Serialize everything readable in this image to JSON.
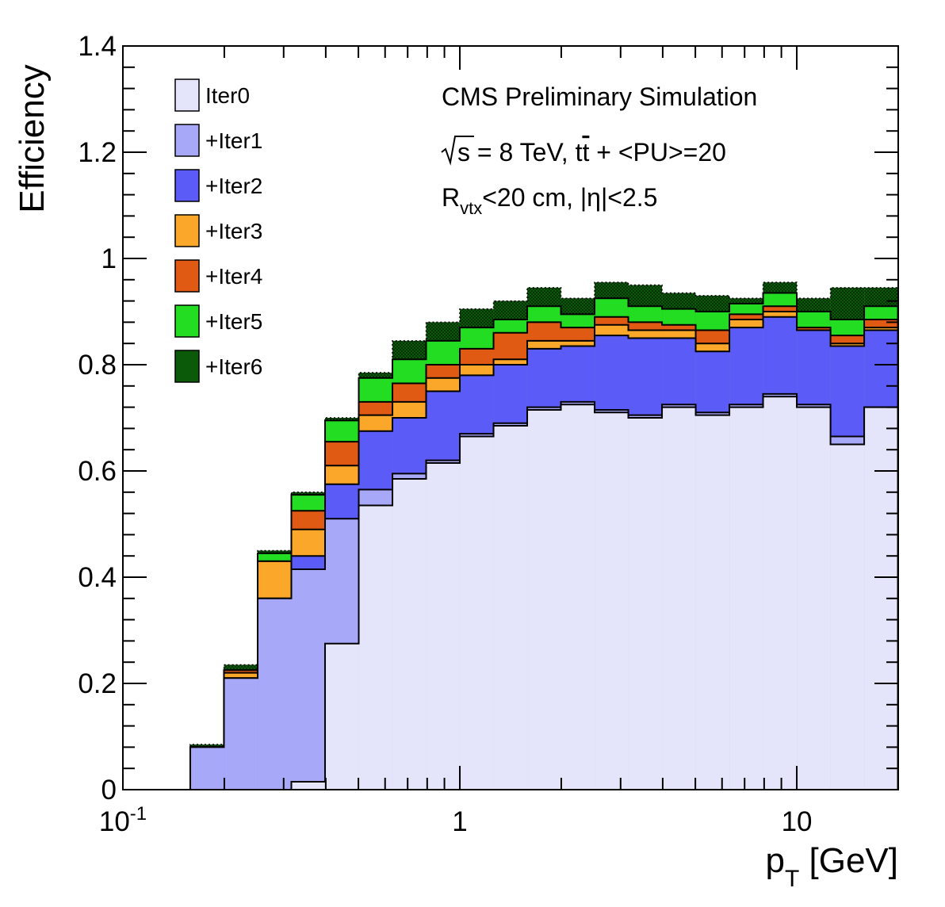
{
  "chart_data": {
    "type": "area",
    "style": "stacked-step-histogram",
    "xscale": "log",
    "xlim": [
      0.1,
      20
    ],
    "ylim": [
      0,
      1.4
    ],
    "xlabel_main": "p",
    "xlabel_sub": "T",
    "xlabel_unit": "[GeV]",
    "ylabel": "Efficiency",
    "grid": false,
    "legend_position": "top-left",
    "xtick_labels": [
      {
        "value": 0.1,
        "base": "10",
        "exp": "-1"
      },
      {
        "value": 1,
        "base": "1",
        "exp": ""
      },
      {
        "value": 10,
        "base": "10",
        "exp": ""
      }
    ],
    "ytick_labels": [
      {
        "value": 0,
        "label": "0"
      },
      {
        "value": 0.2,
        "label": "0.2"
      },
      {
        "value": 0.4,
        "label": "0.4"
      },
      {
        "value": 0.6,
        "label": "0.6"
      },
      {
        "value": 0.8,
        "label": "0.8"
      },
      {
        "value": 1.0,
        "label": "1"
      },
      {
        "value": 1.2,
        "label": "1.2"
      },
      {
        "value": 1.4,
        "label": "1.4"
      }
    ],
    "bin_edges": [
      0.1585,
      0.1995,
      0.2512,
      0.3162,
      0.3981,
      0.5012,
      0.631,
      0.7943,
      1.0,
      1.259,
      1.585,
      1.995,
      2.512,
      3.162,
      3.981,
      5.012,
      6.31,
      7.943,
      10.0,
      12.59,
      15.85,
      19.95
    ],
    "series": [
      {
        "name": "Iter0",
        "color": "#e4e4fb",
        "values": [
          0,
          0,
          0,
          0.015,
          0.275,
          0.535,
          0.585,
          0.615,
          0.665,
          0.685,
          0.715,
          0.725,
          0.71,
          0.7,
          0.72,
          0.705,
          0.72,
          0.74,
          0.72,
          0.65,
          0.72
        ]
      },
      {
        "name": "+Iter1",
        "color": "#a8a8f8",
        "values": [
          0.08,
          0.21,
          0.36,
          0.415,
          0.51,
          0.565,
          0.595,
          0.62,
          0.67,
          0.69,
          0.72,
          0.73,
          0.715,
          0.705,
          0.725,
          0.71,
          0.725,
          0.745,
          0.725,
          0.665,
          0.72
        ]
      },
      {
        "name": "+Iter2",
        "color": "#5b5bf8",
        "values": [
          0.08,
          0.21,
          0.36,
          0.44,
          0.575,
          0.675,
          0.7,
          0.75,
          0.78,
          0.8,
          0.83,
          0.835,
          0.855,
          0.85,
          0.85,
          0.825,
          0.87,
          0.89,
          0.865,
          0.835,
          0.865
        ]
      },
      {
        "name": "+Iter3",
        "color": "#fba72a",
        "values": [
          0.08,
          0.22,
          0.43,
          0.49,
          0.61,
          0.705,
          0.73,
          0.775,
          0.8,
          0.81,
          0.845,
          0.845,
          0.875,
          0.865,
          0.865,
          0.84,
          0.885,
          0.9,
          0.865,
          0.84,
          0.87
        ]
      },
      {
        "name": "+Iter4",
        "color": "#e05a14",
        "values": [
          0.08,
          0.225,
          0.43,
          0.525,
          0.655,
          0.73,
          0.765,
          0.8,
          0.83,
          0.86,
          0.88,
          0.87,
          0.89,
          0.88,
          0.875,
          0.865,
          0.895,
          0.91,
          0.87,
          0.855,
          0.885
        ]
      },
      {
        "name": "+Iter5",
        "color": "#22dd22",
        "values": [
          0.08,
          0.225,
          0.445,
          0.555,
          0.695,
          0.775,
          0.81,
          0.845,
          0.87,
          0.885,
          0.91,
          0.895,
          0.925,
          0.91,
          0.905,
          0.9,
          0.915,
          0.935,
          0.9,
          0.885,
          0.91
        ]
      },
      {
        "name": "+Iter6",
        "color": "#0a5a0a",
        "values": [
          0.085,
          0.235,
          0.45,
          0.56,
          0.7,
          0.785,
          0.845,
          0.88,
          0.905,
          0.92,
          0.945,
          0.925,
          0.955,
          0.95,
          0.935,
          0.93,
          0.925,
          0.955,
          0.925,
          0.945,
          0.945
        ]
      }
    ],
    "annotations": [
      {
        "type": "plain",
        "text": "CMS Preliminary Simulation"
      },
      {
        "type": "sqrt",
        "radicand": "s",
        "rest_a": " = 8 TeV, t",
        "tbar": "t",
        "rest_b": " + <PU>=20"
      },
      {
        "type": "subscript",
        "main": "R",
        "sub": "vtx",
        "rest": "<20 cm, |η|<2.5"
      }
    ]
  }
}
